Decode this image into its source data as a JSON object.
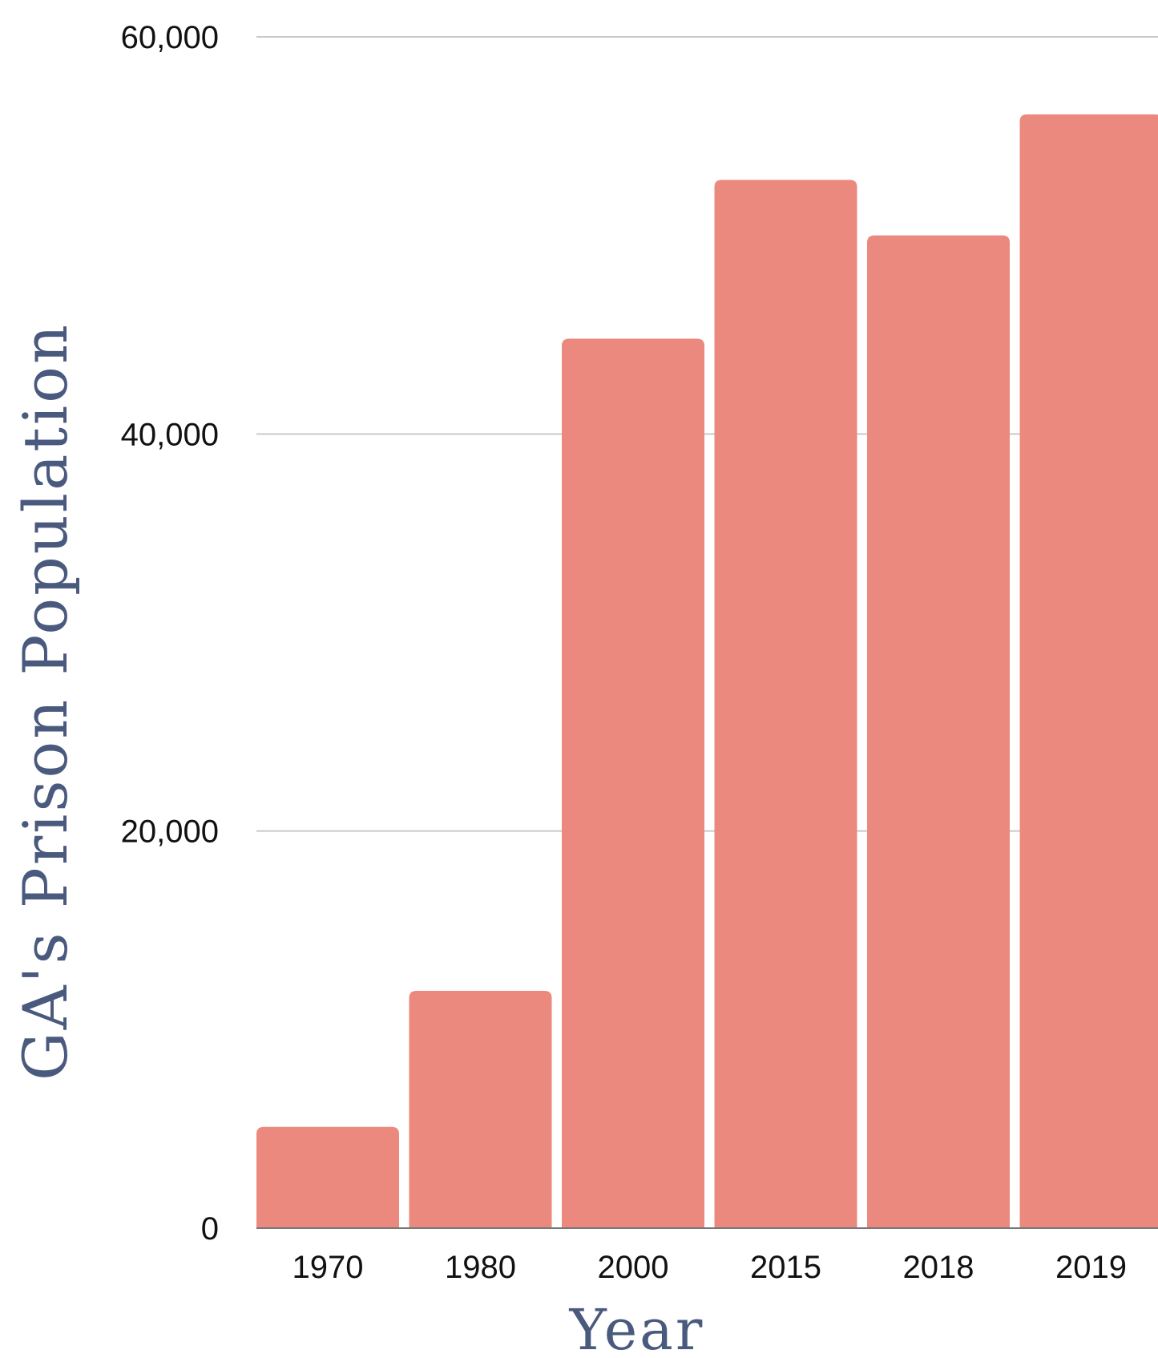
{
  "chart_data": {
    "type": "bar",
    "title": "",
    "xlabel": "Year",
    "ylabel": "GA's Prison Population",
    "categories": [
      "1970",
      "1980",
      "2000",
      "2015",
      "2018",
      "2019"
    ],
    "values": [
      5100,
      11950,
      44800,
      52800,
      50000,
      56100
    ],
    "ylim": [
      0,
      60000
    ],
    "y_ticks": [
      {
        "value": 0,
        "label": "0"
      },
      {
        "value": 20000,
        "label": "20,000"
      },
      {
        "value": 40000,
        "label": "40,000"
      },
      {
        "value": 60000,
        "label": "60,000"
      }
    ],
    "grid": true,
    "legend": "none",
    "bar_color": "#ec897e",
    "axis_title_color": "#4a5a7e"
  }
}
